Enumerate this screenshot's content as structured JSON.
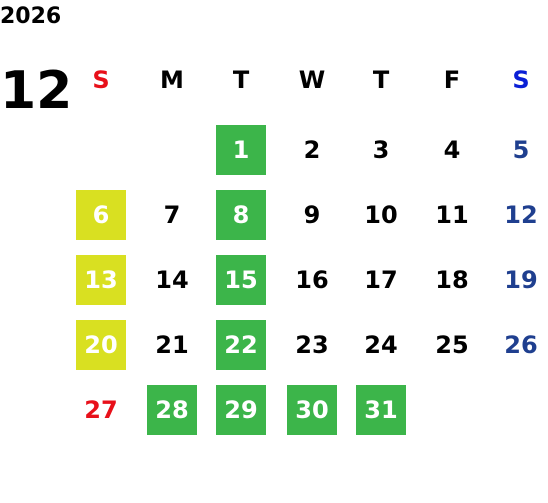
{
  "year": "2026",
  "month": "12",
  "weekdays": [
    {
      "label": "S",
      "color": "#e8101a"
    },
    {
      "label": "M",
      "color": "#000000"
    },
    {
      "label": "T",
      "color": "#000000"
    },
    {
      "label": "W",
      "color": "#000000"
    },
    {
      "label": "T",
      "color": "#000000"
    },
    {
      "label": "F",
      "color": "#000000"
    },
    {
      "label": "S",
      "color": "#0a1fd6"
    }
  ],
  "weeks": [
    [
      null,
      null,
      {
        "day": 1,
        "fill": "#3cb54a"
      },
      {
        "day": 2
      },
      {
        "day": 3
      },
      {
        "day": 4
      },
      {
        "day": 5,
        "color": "#1f3f8f"
      }
    ],
    [
      {
        "day": 6,
        "fill": "#d9e021"
      },
      {
        "day": 7
      },
      {
        "day": 8,
        "fill": "#3cb54a"
      },
      {
        "day": 9
      },
      {
        "day": 10
      },
      {
        "day": 11
      },
      {
        "day": 12,
        "color": "#1f3f8f"
      }
    ],
    [
      {
        "day": 13,
        "fill": "#d9e021"
      },
      {
        "day": 14
      },
      {
        "day": 15,
        "fill": "#3cb54a"
      },
      {
        "day": 16
      },
      {
        "day": 17
      },
      {
        "day": 18
      },
      {
        "day": 19,
        "color": "#1f3f8f"
      }
    ],
    [
      {
        "day": 20,
        "fill": "#d9e021"
      },
      {
        "day": 21
      },
      {
        "day": 22,
        "fill": "#3cb54a"
      },
      {
        "day": 23
      },
      {
        "day": 24
      },
      {
        "day": 25
      },
      {
        "day": 26,
        "color": "#1f3f8f"
      }
    ],
    [
      {
        "day": 27,
        "color": "#e8101a"
      },
      {
        "day": 28,
        "fill": "#3cb54a"
      },
      {
        "day": 29,
        "fill": "#3cb54a"
      },
      {
        "day": 30,
        "fill": "#3cb54a"
      },
      {
        "day": 31,
        "fill": "#3cb54a"
      },
      null,
      null
    ]
  ]
}
